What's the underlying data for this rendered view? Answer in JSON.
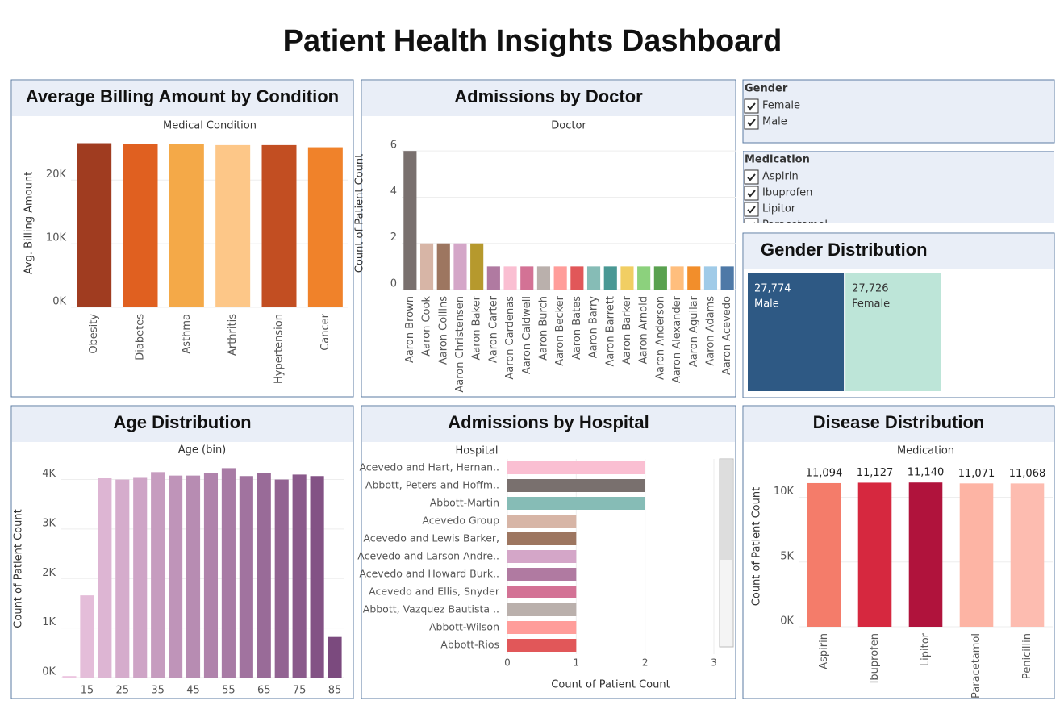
{
  "title": "Patient Health Insights Dashboard",
  "filters": [
    {
      "title": "Gender",
      "options": [
        "Female",
        "Male"
      ]
    },
    {
      "title": "Medication",
      "options": [
        "Aspirin",
        "Ibuprofen",
        "Lipitor",
        "Paracetamol"
      ]
    }
  ],
  "chart_data": [
    {
      "type": "bar",
      "title": "Average Billing Amount by Condition",
      "x_title": "Medical Condition",
      "y_label": "Avg. Billing Amount",
      "categories": [
        "Obesity",
        "Diabetes",
        "Asthma",
        "Arthritis",
        "Hypertension",
        "Cancer"
      ],
      "values": [
        25800,
        25640,
        25640,
        25500,
        25500,
        25160
      ],
      "colors": [
        "#a03c20",
        "#e06020",
        "#f4a948",
        "#fdc788",
        "#c24e22",
        "#f0822a"
      ],
      "ylim": [
        0,
        26500
      ],
      "yticks": [
        {
          "value": 0,
          "label": "0K"
        },
        {
          "value": 10000,
          "label": "10K"
        },
        {
          "value": 20000,
          "label": "20K"
        }
      ],
      "grid": true
    },
    {
      "type": "bar",
      "title": "Admissions by Doctor",
      "x_title": "Doctor",
      "y_label": "Count of Patient Count",
      "categories": [
        "Aaron Brown",
        "Aaron Cook",
        "Aaron Collins",
        "Aaron Christensen",
        "Aaron Baker",
        "Aaron Carter",
        "Aaron Cardenas",
        "Aaron Caldwell",
        "Aaron Burch",
        "Aaron Becker",
        "Aaron Bates",
        "Aaron Barry",
        "Aaron Barrett",
        "Aaron Barker",
        "Aaron Arnold",
        "Aaron Anderson",
        "Aaron Alexander",
        "Aaron Aguilar",
        "Aaron Adams",
        "Aaron Acevedo"
      ],
      "values": [
        6,
        2,
        2,
        2,
        2,
        1,
        1,
        1,
        1,
        1,
        1,
        1,
        1,
        1,
        1,
        1,
        1,
        1,
        1,
        1
      ],
      "colors": [
        "#79706e",
        "#d7b5a6",
        "#9d7660",
        "#d4a6c8",
        "#b6992d",
        "#b07aa1",
        "#fabfd2",
        "#d37295",
        "#bab0ac",
        "#ff9d9a",
        "#e15759",
        "#86bcb6",
        "#499894",
        "#f1ce63",
        "#8cd17d",
        "#59a14f",
        "#ffbe7d",
        "#f28e2b",
        "#a0cbe8",
        "#4e79a7"
      ],
      "ylim": [
        0,
        6.6
      ],
      "yticks": [
        0,
        2,
        4,
        6
      ],
      "grid": true
    },
    {
      "type": "treemap",
      "title": "Gender Distribution",
      "categories": [
        "Male",
        "Female"
      ],
      "values": [
        27774,
        27726
      ],
      "value_labels": [
        "27,774",
        "27,726"
      ],
      "colors": [
        "#2e5984",
        "#bde5d8"
      ]
    },
    {
      "type": "bar",
      "title": "Age Distribution",
      "x_title": "Age (bin)",
      "y_label": "Count of Patient Count",
      "categories": [
        null,
        "15",
        null,
        "25",
        null,
        "35",
        null,
        "45",
        null,
        "55",
        null,
        "65",
        null,
        "75",
        null,
        "85"
      ],
      "values": [
        30,
        1660,
        4030,
        4000,
        4050,
        4150,
        4080,
        4080,
        4130,
        4230,
        4070,
        4130,
        4000,
        4100,
        4070,
        820
      ],
      "color_range": [
        "#ecc5e0",
        "#7b4a7e"
      ],
      "ylim": [
        0,
        4400
      ],
      "yticks": [
        {
          "value": 0,
          "label": "0K"
        },
        {
          "value": 1000,
          "label": "1K"
        },
        {
          "value": 2000,
          "label": "2K"
        },
        {
          "value": 3000,
          "label": "3K"
        },
        {
          "value": 4000,
          "label": "4K"
        }
      ],
      "grid": true
    },
    {
      "type": "bar",
      "horizontal": true,
      "title": "Admissions by Hospital",
      "y_title": "Hospital",
      "x_label": "Count of Patient Count",
      "categories": [
        "Acevedo and Hart, Hernan..",
        "Abbott, Peters and Hoffm..",
        "Abbott-Martin",
        "Acevedo Group",
        "Acevedo and Lewis Barker,",
        "Acevedo and Larson Andre..",
        "Acevedo and Howard Burk..",
        "Acevedo and Ellis, Snyder",
        "Abbott, Vazquez Bautista ..",
        "Abbott-Wilson",
        "Abbott-Rios"
      ],
      "values": [
        2,
        2,
        2,
        1,
        1,
        1,
        1,
        1,
        1,
        1,
        1
      ],
      "colors": [
        "#fabfd2",
        "#79706e",
        "#86bcb6",
        "#d7b5a6",
        "#9d7660",
        "#d4a6c8",
        "#b07aa1",
        "#d37295",
        "#bab0ac",
        "#ff9d9a",
        "#e15759"
      ],
      "xlim": [
        0,
        3
      ],
      "xticks": [
        0,
        1,
        2,
        3
      ],
      "grid": true
    },
    {
      "type": "bar",
      "title": "Disease Distribution",
      "x_title": "Medication",
      "y_label": "Count of Patient Count",
      "categories": [
        "Aspirin",
        "Ibuprofen",
        "Lipitor",
        "Paracetamol",
        "Penicillin"
      ],
      "values": [
        11094,
        11127,
        11140,
        11071,
        11068
      ],
      "value_labels": [
        "11,094",
        "11,127",
        "11,140",
        "11,071",
        "11,068"
      ],
      "colors": [
        "#f47c6a",
        "#d6283f",
        "#b0133c",
        "#fdb4a4",
        "#fdbcb0"
      ],
      "ylim": [
        0,
        12400
      ],
      "yticks": [
        {
          "value": 0,
          "label": "0K"
        },
        {
          "value": 5000,
          "label": "5K"
        },
        {
          "value": 10000,
          "label": "10K"
        }
      ],
      "grid": true
    }
  ]
}
